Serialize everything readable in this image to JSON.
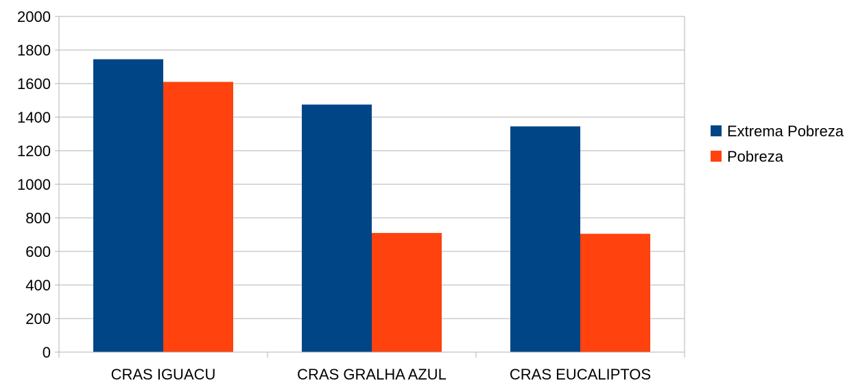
{
  "chart_data": {
    "type": "bar",
    "categories": [
      "CRAS IGUACU",
      "CRAS GRALHA AZUL",
      "CRAS EUCALIPTOS"
    ],
    "series": [
      {
        "name": "Extrema Pobreza",
        "color": "#004586",
        "values": [
          1745,
          1475,
          1345
        ]
      },
      {
        "name": "Pobreza",
        "color": "#ff420e",
        "values": [
          1610,
          710,
          705
        ]
      }
    ],
    "ylim": [
      0,
      2000
    ],
    "yticks": [
      "0",
      "200",
      "400",
      "600",
      "800",
      "1000",
      "1200",
      "1400",
      "1600",
      "1800",
      "2000"
    ],
    "grid": true,
    "legend_position": "right"
  }
}
